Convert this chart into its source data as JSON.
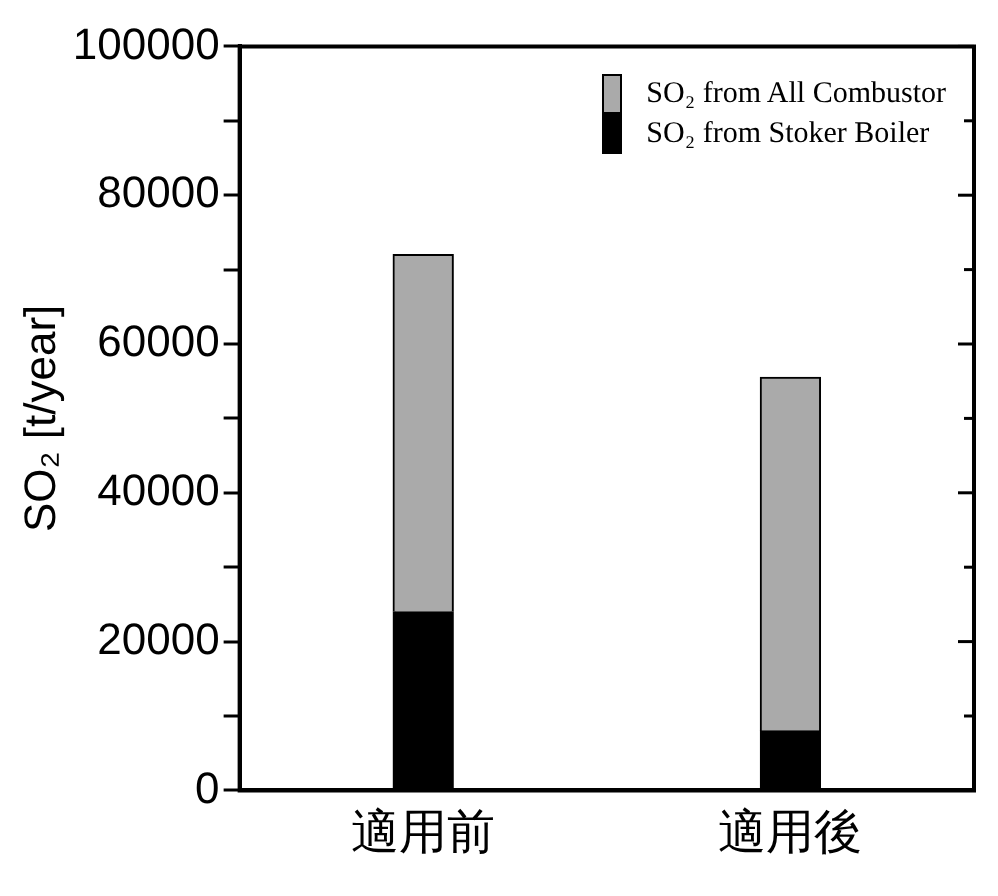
{
  "chart_data": {
    "type": "bar",
    "stacked": true,
    "ylabel": "SO₂ [t/year]",
    "categories": [
      "適用前",
      "適用後"
    ],
    "series": [
      {
        "name": "SO₂ from Stoker Boiler",
        "color": "#000000",
        "values": [
          24000,
          8000
        ]
      },
      {
        "name": "SO₂ from All Combustor",
        "color": "#aaaaaa",
        "values": [
          48000,
          47500
        ]
      }
    ],
    "ylim": [
      0,
      100000
    ],
    "yticks": [
      0,
      {
        "value": 10000,
        "label": null
      },
      20000,
      {
        "value": 30000,
        "label": null
      },
      40000,
      {
        "value": 50000,
        "label": null
      },
      60000,
      {
        "value": 70000,
        "label": null
      },
      80000,
      {
        "value": 90000,
        "label": null
      },
      100000
    ],
    "grid": false,
    "legend": "top right"
  }
}
